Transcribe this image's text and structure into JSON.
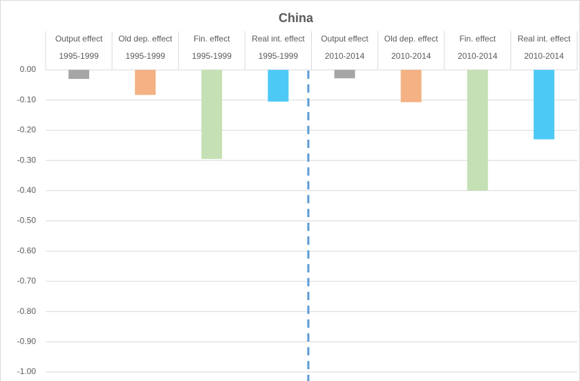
{
  "chart_data": {
    "type": "bar",
    "title": "China",
    "categories": [
      "Output effect",
      "Old dep. effect",
      "Fin. effect",
      "Real int. effect",
      "Output effect",
      "Old dep. effect",
      "Fin. effect",
      "Real int. effect"
    ],
    "periods": [
      "1995-1999",
      "1995-1999",
      "1995-1999",
      "1995-1999",
      "2010-2014",
      "2010-2014",
      "2010-2014",
      "2010-2014"
    ],
    "values": [
      -0.03,
      -0.083,
      -0.295,
      -0.105,
      -0.028,
      -0.107,
      -0.4,
      -0.23
    ],
    "colors": [
      "#a6a6a6",
      "#f4b183",
      "#c5e0b4",
      "#4dc9f6",
      "#a6a6a6",
      "#f4b183",
      "#c5e0b4",
      "#4dc9f6"
    ],
    "ylim": [
      -1,
      0
    ],
    "yticks": [
      {
        "value": 0,
        "label": "0.00"
      },
      {
        "value": -0.1,
        "label": "-0.10"
      },
      {
        "value": -0.2,
        "label": "-0.20"
      },
      {
        "value": -0.3,
        "label": "-0.30"
      },
      {
        "value": -0.4,
        "label": "-0.40"
      },
      {
        "value": -0.5,
        "label": "-0.50"
      },
      {
        "value": -0.6,
        "label": "-0.60"
      },
      {
        "value": -0.7,
        "label": "-0.70"
      },
      {
        "value": -0.8,
        "label": "-0.80"
      },
      {
        "value": -0.9,
        "label": "-0.90"
      },
      {
        "value": -1,
        "label": "-1.00"
      }
    ],
    "grid": true
  }
}
